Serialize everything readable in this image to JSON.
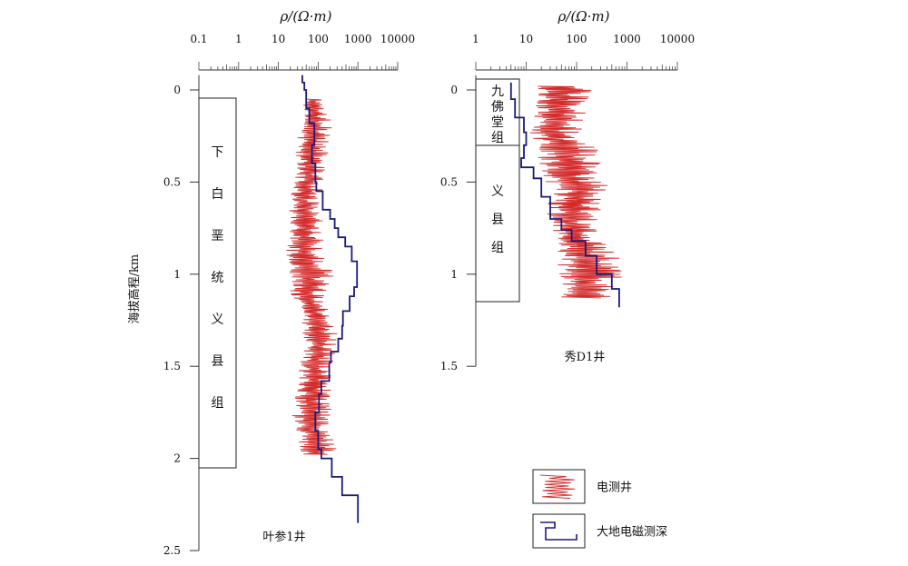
{
  "chart_data": [
    {
      "type": "line",
      "caption": "叶参1井",
      "x_axis_label": "ρ/(Ω·m)",
      "x_scale": "log",
      "x_ticks": [
        0.1,
        1,
        10,
        100,
        1000,
        10000
      ],
      "x_tick_labels": [
        "0.1",
        "1",
        "10",
        "100",
        "1000",
        "10000"
      ],
      "y_axis_label": "海拔高程/km",
      "y_range": [
        0,
        2.5
      ],
      "y_ticks": [
        0,
        0.5,
        1,
        1.5,
        2,
        2.5
      ],
      "y_tick_labels": [
        "0",
        "0.5",
        "1",
        "1.5",
        "2",
        "2.5"
      ],
      "formations": [
        {
          "chars": [
            "下",
            "白",
            "垩",
            "统",
            "义",
            "县",
            "组"
          ],
          "top": 0.05,
          "bottom": 2.05
        }
      ],
      "series": [
        {
          "name": "电测井",
          "style": "electric-log",
          "color": "#d42a2a",
          "depth_range": [
            0.05,
            1.98
          ],
          "envelope": [
            {
              "depth": 0.1,
              "min": 40,
              "max": 150
            },
            {
              "depth": 0.2,
              "min": 35,
              "max": 250
            },
            {
              "depth": 0.3,
              "min": 25,
              "max": 180
            },
            {
              "depth": 0.4,
              "min": 30,
              "max": 170
            },
            {
              "depth": 0.5,
              "min": 25,
              "max": 140
            },
            {
              "depth": 0.6,
              "min": 18,
              "max": 110
            },
            {
              "depth": 0.7,
              "min": 20,
              "max": 140
            },
            {
              "depth": 0.8,
              "min": 18,
              "max": 150
            },
            {
              "depth": 0.9,
              "min": 15,
              "max": 170
            },
            {
              "depth": 1.0,
              "min": 20,
              "max": 260
            },
            {
              "depth": 1.1,
              "min": 20,
              "max": 150
            },
            {
              "depth": 1.2,
              "min": 40,
              "max": 180
            },
            {
              "depth": 1.3,
              "min": 40,
              "max": 320
            },
            {
              "depth": 1.4,
              "min": 45,
              "max": 280
            },
            {
              "depth": 1.5,
              "min": 30,
              "max": 230
            },
            {
              "depth": 1.6,
              "min": 30,
              "max": 230
            },
            {
              "depth": 1.7,
              "min": 25,
              "max": 220
            },
            {
              "depth": 1.8,
              "min": 20,
              "max": 200
            },
            {
              "depth": 1.9,
              "min": 30,
              "max": 280
            }
          ]
        },
        {
          "name": "大地电磁测深",
          "style": "mt-step",
          "color": "#1a1a7a",
          "points": [
            {
              "depth": -0.08,
              "rho": 40
            },
            {
              "depth": -0.04,
              "rho": 45
            },
            {
              "depth": 0.0,
              "rho": 50
            },
            {
              "depth": 0.1,
              "rho": 60
            },
            {
              "depth": 0.18,
              "rho": 80
            },
            {
              "depth": 0.3,
              "rho": 70
            },
            {
              "depth": 0.4,
              "rho": 85
            },
            {
              "depth": 0.5,
              "rho": 90
            },
            {
              "depth": 0.55,
              "rho": 130
            },
            {
              "depth": 0.65,
              "rho": 200
            },
            {
              "depth": 0.7,
              "rho": 260
            },
            {
              "depth": 0.75,
              "rho": 320
            },
            {
              "depth": 0.8,
              "rho": 480
            },
            {
              "depth": 0.85,
              "rho": 700
            },
            {
              "depth": 0.93,
              "rho": 950
            },
            {
              "depth": 1.03,
              "rho": 950
            },
            {
              "depth": 1.07,
              "rho": 800
            },
            {
              "depth": 1.12,
              "rho": 620
            },
            {
              "depth": 1.2,
              "rho": 420
            },
            {
              "depth": 1.28,
              "rho": 400
            },
            {
              "depth": 1.35,
              "rho": 320
            },
            {
              "depth": 1.42,
              "rho": 210
            },
            {
              "depth": 1.48,
              "rho": 190
            },
            {
              "depth": 1.58,
              "rho": 120
            },
            {
              "depth": 1.65,
              "rho": 105
            },
            {
              "depth": 1.75,
              "rho": 85
            },
            {
              "depth": 1.85,
              "rho": 100
            },
            {
              "depth": 1.95,
              "rho": 120
            },
            {
              "depth": 2.0,
              "rho": 220
            },
            {
              "depth": 2.1,
              "rho": 400
            },
            {
              "depth": 2.2,
              "rho": 1000
            },
            {
              "depth": 2.35,
              "rho": 1000
            }
          ]
        }
      ]
    },
    {
      "type": "line",
      "caption": "秀D1井",
      "x_axis_label": "ρ/(Ω·m)",
      "x_scale": "log",
      "x_ticks": [
        1,
        10,
        100,
        1000,
        10000
      ],
      "x_tick_labels": [
        "1",
        "10",
        "100",
        "1000",
        "10000"
      ],
      "y_range": [
        0,
        1.5
      ],
      "y_ticks": [
        0,
        0.5,
        1,
        1.5
      ],
      "y_tick_labels": [
        "0",
        "0.5",
        "1",
        "1.5"
      ],
      "formations": [
        {
          "chars": [
            "九",
            "佛",
            "堂",
            "组"
          ],
          "top": -0.06,
          "bottom": 0.3
        },
        {
          "chars": [
            "义",
            "县",
            "组"
          ],
          "top": 0.3,
          "bottom": 1.15
        }
      ],
      "series": [
        {
          "name": "电测井",
          "style": "electric-log",
          "color": "#d42a2a",
          "depth_range": [
            -0.02,
            1.13
          ],
          "envelope": [
            {
              "depth": 0.05,
              "min": 14,
              "max": 200
            },
            {
              "depth": 0.15,
              "min": 12,
              "max": 150
            },
            {
              "depth": 0.25,
              "min": 12,
              "max": 120
            },
            {
              "depth": 0.35,
              "min": 15,
              "max": 350
            },
            {
              "depth": 0.45,
              "min": 20,
              "max": 250
            },
            {
              "depth": 0.55,
              "min": 30,
              "max": 600
            },
            {
              "depth": 0.65,
              "min": 25,
              "max": 300
            },
            {
              "depth": 0.75,
              "min": 30,
              "max": 250
            },
            {
              "depth": 0.85,
              "min": 40,
              "max": 400
            },
            {
              "depth": 0.95,
              "min": 40,
              "max": 1200
            },
            {
              "depth": 1.05,
              "min": 50,
              "max": 700
            }
          ]
        },
        {
          "name": "大地电磁测深",
          "style": "mt-step",
          "color": "#1a1a7a",
          "points": [
            {
              "depth": -0.04,
              "rho": 5
            },
            {
              "depth": 0.05,
              "rho": 6
            },
            {
              "depth": 0.15,
              "rho": 9
            },
            {
              "depth": 0.23,
              "rho": 10
            },
            {
              "depth": 0.3,
              "rho": 9
            },
            {
              "depth": 0.37,
              "rho": 8
            },
            {
              "depth": 0.42,
              "rho": 14
            },
            {
              "depth": 0.48,
              "rho": 20
            },
            {
              "depth": 0.58,
              "rho": 30
            },
            {
              "depth": 0.7,
              "rho": 50
            },
            {
              "depth": 0.76,
              "rho": 80
            },
            {
              "depth": 0.82,
              "rho": 150
            },
            {
              "depth": 0.9,
              "rho": 250
            },
            {
              "depth": 1.0,
              "rho": 500
            },
            {
              "depth": 1.08,
              "rho": 700
            },
            {
              "depth": 1.18,
              "rho": 700
            }
          ]
        }
      ]
    }
  ],
  "legend": [
    {
      "label": "电测井",
      "swatch": "electric-log",
      "color": "#d42a2a"
    },
    {
      "label": "大地电磁测深",
      "swatch": "mt-step",
      "color": "#1a1a7a"
    }
  ]
}
